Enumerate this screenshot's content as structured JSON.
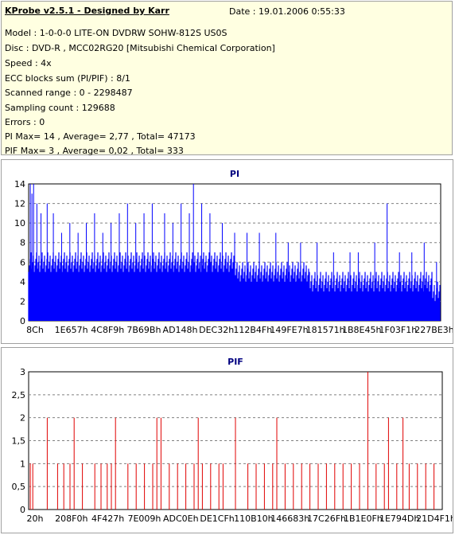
{
  "header": {
    "title": "KProbe v2.5.1 - Designed by Karr",
    "date": "Date : 19.01.2006 0:55:33",
    "lines": [
      "Model : 1-0-0-0 LITE-ON DVDRW SOHW-812S  US0S",
      "Disc : DVD-R , MCC02RG20 [Mitsubishi Chemical Corporation]",
      "Speed : 4x",
      "ECC blocks sum (PI/PIF) : 8/1",
      "Scanned range : 0 - 2298487",
      "Sampling count : 129688",
      "Errors : 0",
      "PI Max= 14 , Average= 2,77 , Total= 47173",
      "PIF Max= 3 , Average= 0,02 , Total= 333"
    ]
  },
  "chart_data": [
    {
      "type": "bar",
      "title": "PI",
      "xlabel": "",
      "ylabel": "",
      "ylim": [
        0,
        14
      ],
      "yticks": [
        "0",
        "2",
        "4",
        "6",
        "8",
        "10",
        "12",
        "14"
      ],
      "x_tick_labels": [
        "8Ch",
        "1E657h",
        "4C8F9h",
        "7B69Bh",
        "AD148h",
        "DEC32h",
        "112B4Fh",
        "149FE7h",
        "181571h",
        "1B8E45h",
        "1F03F1h",
        "227BE3h"
      ],
      "x_range": [
        140,
        2259939
      ],
      "color": "#0000ff",
      "grid": true,
      "baseline_profile": [
        {
          "from": 0.0,
          "to": 0.5,
          "value": 6
        },
        {
          "from": 0.5,
          "to": 0.68,
          "value": 5
        },
        {
          "from": 0.68,
          "to": 0.98,
          "value": 4
        },
        {
          "from": 0.98,
          "to": 1.0,
          "value": 3
        }
      ],
      "spikes": [
        [
          0.004,
          14
        ],
        [
          0.008,
          13
        ],
        [
          0.012,
          14
        ],
        [
          0.02,
          12
        ],
        [
          0.03,
          11
        ],
        [
          0.045,
          12
        ],
        [
          0.06,
          11
        ],
        [
          0.08,
          9
        ],
        [
          0.1,
          10
        ],
        [
          0.12,
          9
        ],
        [
          0.14,
          10
        ],
        [
          0.16,
          11
        ],
        [
          0.18,
          9
        ],
        [
          0.2,
          10
        ],
        [
          0.22,
          11
        ],
        [
          0.24,
          12
        ],
        [
          0.26,
          10
        ],
        [
          0.28,
          11
        ],
        [
          0.3,
          12
        ],
        [
          0.33,
          11
        ],
        [
          0.35,
          10
        ],
        [
          0.37,
          12
        ],
        [
          0.39,
          11
        ],
        [
          0.4,
          14
        ],
        [
          0.42,
          12
        ],
        [
          0.44,
          11
        ],
        [
          0.47,
          10
        ],
        [
          0.5,
          9
        ],
        [
          0.53,
          9
        ],
        [
          0.56,
          9
        ],
        [
          0.6,
          9
        ],
        [
          0.63,
          8
        ],
        [
          0.66,
          8
        ],
        [
          0.7,
          8
        ],
        [
          0.74,
          7
        ],
        [
          0.78,
          7
        ],
        [
          0.8,
          7
        ],
        [
          0.84,
          8
        ],
        [
          0.87,
          12
        ],
        [
          0.9,
          7
        ],
        [
          0.93,
          7
        ],
        [
          0.96,
          8
        ],
        [
          0.99,
          6
        ]
      ]
    },
    {
      "type": "bar",
      "title": "PIF",
      "xlabel": "",
      "ylabel": "",
      "ylim": [
        0,
        3
      ],
      "yticks": [
        "0",
        "0,5",
        "1",
        "1,5",
        "2",
        "2,5",
        "3"
      ],
      "x_tick_labels": [
        "20h",
        "208F0h",
        "4F427h",
        "7E009h",
        "ADC0Eh",
        "DE1CFh",
        "110B10h",
        "146683h",
        "17C26Fh",
        "1B1E0Fh",
        "1E794Dh",
        "21D4F1h"
      ],
      "x_range": [
        32,
        2217201
      ],
      "color": "#e00000",
      "grid": true,
      "spikes": [
        [
          0.004,
          1
        ],
        [
          0.01,
          1
        ],
        [
          0.045,
          2
        ],
        [
          0.07,
          1
        ],
        [
          0.085,
          1
        ],
        [
          0.1,
          1
        ],
        [
          0.11,
          2
        ],
        [
          0.13,
          1
        ],
        [
          0.16,
          1
        ],
        [
          0.175,
          1
        ],
        [
          0.19,
          1
        ],
        [
          0.2,
          1
        ],
        [
          0.21,
          2
        ],
        [
          0.24,
          1
        ],
        [
          0.26,
          1
        ],
        [
          0.28,
          1
        ],
        [
          0.3,
          1
        ],
        [
          0.31,
          2
        ],
        [
          0.32,
          2
        ],
        [
          0.34,
          1
        ],
        [
          0.36,
          1
        ],
        [
          0.38,
          1
        ],
        [
          0.4,
          1
        ],
        [
          0.41,
          2
        ],
        [
          0.42,
          1
        ],
        [
          0.44,
          1
        ],
        [
          0.46,
          1
        ],
        [
          0.47,
          1
        ],
        [
          0.5,
          2
        ],
        [
          0.53,
          1
        ],
        [
          0.55,
          1
        ],
        [
          0.57,
          1
        ],
        [
          0.59,
          1
        ],
        [
          0.6,
          2
        ],
        [
          0.62,
          1
        ],
        [
          0.64,
          1
        ],
        [
          0.66,
          1
        ],
        [
          0.68,
          1
        ],
        [
          0.7,
          1
        ],
        [
          0.72,
          1
        ],
        [
          0.74,
          1
        ],
        [
          0.76,
          1
        ],
        [
          0.78,
          1
        ],
        [
          0.8,
          1
        ],
        [
          0.82,
          3
        ],
        [
          0.84,
          1
        ],
        [
          0.86,
          1
        ],
        [
          0.87,
          2
        ],
        [
          0.89,
          1
        ],
        [
          0.905,
          2
        ],
        [
          0.92,
          1
        ],
        [
          0.94,
          1
        ],
        [
          0.96,
          1
        ],
        [
          0.98,
          1
        ]
      ]
    }
  ]
}
